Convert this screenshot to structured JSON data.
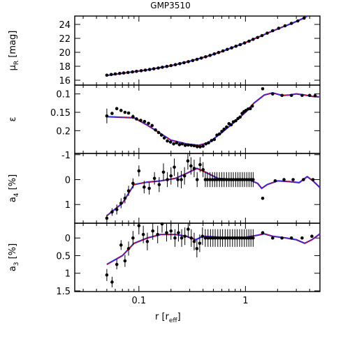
{
  "title": "GMP3510",
  "xlabel": "r [r",
  "xlabel_sub": "eff",
  "xlabel_close": "]",
  "colors": {
    "data": "#000000",
    "model_red": "#e00000",
    "model_blue": "#2a2aff"
  },
  "chart_data": [
    {
      "type": "scatter",
      "ylabel": "μ",
      "ylabel_sub": "R",
      "ylabel_unit": " [mag]",
      "xscale": "log",
      "xlim": [
        0.025,
        5.0
      ],
      "ylim": [
        25.2,
        15.3
      ],
      "xticks": [],
      "yticks": [
        16,
        18,
        20,
        22,
        24
      ],
      "points": [
        [
          0.05,
          16.72
        ],
        [
          0.055,
          16.82
        ],
        [
          0.06,
          16.9
        ],
        [
          0.066,
          16.97
        ],
        [
          0.072,
          17.04
        ],
        [
          0.079,
          17.11
        ],
        [
          0.087,
          17.19
        ],
        [
          0.095,
          17.27
        ],
        [
          0.105,
          17.36
        ],
        [
          0.115,
          17.45
        ],
        [
          0.126,
          17.54
        ],
        [
          0.138,
          17.64
        ],
        [
          0.152,
          17.75
        ],
        [
          0.166,
          17.86
        ],
        [
          0.183,
          17.98
        ],
        [
          0.2,
          18.1
        ],
        [
          0.22,
          18.23
        ],
        [
          0.242,
          18.37
        ],
        [
          0.265,
          18.51
        ],
        [
          0.291,
          18.66
        ],
        [
          0.32,
          18.82
        ],
        [
          0.351,
          18.99
        ],
        [
          0.385,
          19.17
        ],
        [
          0.423,
          19.36
        ],
        [
          0.465,
          19.56
        ],
        [
          0.51,
          19.77
        ],
        [
          0.56,
          19.98
        ],
        [
          0.615,
          20.2
        ],
        [
          0.675,
          20.42
        ],
        [
          0.741,
          20.64
        ],
        [
          0.814,
          20.87
        ],
        [
          0.893,
          21.1
        ],
        [
          0.981,
          21.34
        ],
        [
          1.08,
          21.6
        ],
        [
          1.18,
          21.86
        ],
        [
          1.3,
          22.12
        ],
        [
          1.43,
          22.4
        ],
        [
          1.6,
          22.75
        ],
        [
          1.8,
          23.1
        ],
        [
          2.05,
          23.45
        ],
        [
          2.35,
          23.8
        ],
        [
          2.7,
          24.15
        ],
        [
          3.1,
          24.5
        ],
        [
          3.55,
          24.9
        ]
      ],
      "model": [
        [
          0.05,
          16.68
        ],
        [
          0.08,
          17.12
        ],
        [
          0.12,
          17.48
        ],
        [
          0.2,
          18.08
        ],
        [
          0.3,
          18.72
        ],
        [
          0.45,
          19.48
        ],
        [
          0.6,
          20.12
        ],
        [
          0.8,
          20.84
        ],
        [
          1.0,
          21.4
        ],
        [
          1.3,
          22.14
        ],
        [
          1.7,
          22.9
        ],
        [
          2.2,
          23.6
        ],
        [
          2.8,
          24.22
        ],
        [
          3.4,
          24.8
        ],
        [
          3.8,
          25.25
        ]
      ]
    },
    {
      "type": "scatter",
      "ylabel": "ε",
      "xscale": "log",
      "xlim": [
        0.025,
        5.0
      ],
      "ylim": [
        0.076,
        0.262
      ],
      "xticks": [],
      "yticks": [
        0.1,
        0.15,
        0.2
      ],
      "ytick_labels": [
        "0.1",
        "0.15",
        "0.2"
      ],
      "points": [
        [
          0.05,
          0.16,
          0.02
        ],
        [
          0.056,
          0.153,
          0
        ],
        [
          0.062,
          0.14,
          0
        ],
        [
          0.068,
          0.145,
          0
        ],
        [
          0.074,
          0.15,
          0
        ],
        [
          0.08,
          0.152,
          0
        ],
        [
          0.088,
          0.162,
          0.006
        ],
        [
          0.095,
          0.168,
          0
        ],
        [
          0.104,
          0.172,
          0
        ],
        [
          0.113,
          0.175,
          0
        ],
        [
          0.123,
          0.18,
          0
        ],
        [
          0.133,
          0.186,
          0
        ],
        [
          0.143,
          0.198,
          0
        ],
        [
          0.153,
          0.205,
          0
        ],
        [
          0.163,
          0.212,
          0
        ],
        [
          0.173,
          0.22,
          0
        ],
        [
          0.185,
          0.228,
          0
        ],
        [
          0.198,
          0.231,
          0
        ],
        [
          0.212,
          0.236,
          0
        ],
        [
          0.226,
          0.233,
          0
        ],
        [
          0.24,
          0.238,
          0
        ],
        [
          0.255,
          0.236,
          0
        ],
        [
          0.272,
          0.24,
          0
        ],
        [
          0.29,
          0.239,
          0
        ],
        [
          0.31,
          0.24,
          0
        ],
        [
          0.33,
          0.241,
          0
        ],
        [
          0.352,
          0.243,
          0.006
        ],
        [
          0.375,
          0.244,
          0
        ],
        [
          0.4,
          0.242,
          0
        ],
        [
          0.425,
          0.236,
          0
        ],
        [
          0.45,
          0.233,
          0
        ],
        [
          0.48,
          0.227,
          0
        ],
        [
          0.51,
          0.224,
          0
        ],
        [
          0.54,
          0.212,
          0
        ],
        [
          0.57,
          0.209,
          0
        ],
        [
          0.6,
          0.202,
          0
        ],
        [
          0.63,
          0.196,
          0
        ],
        [
          0.665,
          0.19,
          0
        ],
        [
          0.7,
          0.181,
          0
        ],
        [
          0.735,
          0.184,
          0
        ],
        [
          0.77,
          0.176,
          0
        ],
        [
          0.81,
          0.173,
          0
        ],
        [
          0.85,
          0.167,
          0
        ],
        [
          0.89,
          0.163,
          0
        ],
        [
          0.93,
          0.153,
          0
        ],
        [
          0.97,
          0.148,
          0
        ],
        [
          1.01,
          0.145,
          0
        ],
        [
          1.06,
          0.141,
          0
        ],
        [
          1.11,
          0.14,
          0
        ],
        [
          1.16,
          0.133,
          0
        ],
        [
          1.45,
          0.086,
          0
        ],
        [
          1.8,
          0.1,
          0
        ],
        [
          2.2,
          0.104,
          0
        ],
        [
          2.7,
          0.104,
          0
        ],
        [
          3.4,
          0.104,
          0
        ],
        [
          4.0,
          0.104,
          0
        ],
        [
          4.5,
          0.105,
          0
        ]
      ],
      "model": [
        [
          0.05,
          0.162
        ],
        [
          0.09,
          0.165
        ],
        [
          0.12,
          0.185
        ],
        [
          0.16,
          0.208
        ],
        [
          0.2,
          0.226
        ],
        [
          0.28,
          0.236
        ],
        [
          0.36,
          0.24
        ],
        [
          0.45,
          0.233
        ],
        [
          0.6,
          0.205
        ],
        [
          0.8,
          0.175
        ],
        [
          1.0,
          0.15
        ],
        [
          1.2,
          0.125
        ],
        [
          1.5,
          0.103
        ],
        [
          1.8,
          0.097
        ],
        [
          2.2,
          0.104
        ],
        [
          2.6,
          0.103
        ],
        [
          3.0,
          0.1
        ],
        [
          3.6,
          0.103
        ],
        [
          4.3,
          0.107
        ],
        [
          4.9,
          0.108
        ]
      ]
    },
    {
      "type": "scatter",
      "ylabel": "a",
      "ylabel_sub": "4",
      "ylabel_unit": " [%]",
      "xscale": "log",
      "xlim": [
        0.025,
        5.0
      ],
      "ylim": [
        -1.05,
        1.75
      ],
      "xticks": [],
      "yticks": [
        -1,
        0,
        1
      ],
      "points": [
        [
          0.05,
          1.55,
          0.14
        ],
        [
          0.056,
          1.3,
          0.15
        ],
        [
          0.062,
          1.2,
          0.2
        ],
        [
          0.068,
          0.95,
          0.2
        ],
        [
          0.074,
          0.75,
          0.2
        ],
        [
          0.08,
          0.45,
          0.2
        ],
        [
          0.088,
          0.15,
          0.2
        ],
        [
          0.1,
          -0.35,
          0.22
        ],
        [
          0.112,
          0.3,
          0.25
        ],
        [
          0.125,
          0.35,
          0.25
        ],
        [
          0.14,
          -0.05,
          0.25
        ],
        [
          0.155,
          0.2,
          0.3
        ],
        [
          0.17,
          -0.3,
          0.35
        ],
        [
          0.185,
          0.0,
          0.3
        ],
        [
          0.2,
          -0.15,
          0.35
        ],
        [
          0.215,
          -0.5,
          0.35
        ],
        [
          0.232,
          0.0,
          0.3
        ],
        [
          0.25,
          0.0,
          0.35
        ],
        [
          0.268,
          -0.15,
          0.35
        ],
        [
          0.288,
          -0.75,
          0.35
        ],
        [
          0.308,
          -0.55,
          0.35
        ],
        [
          0.33,
          -0.45,
          0.35
        ],
        [
          0.352,
          0.0,
          0.3
        ],
        [
          0.375,
          -0.6,
          0.3
        ],
        [
          0.4,
          -0.4,
          0.3
        ],
        [
          0.42,
          0.0,
          0.3
        ],
        [
          0.44,
          0.0,
          0.3
        ],
        [
          0.465,
          0.0,
          0.3
        ],
        [
          0.49,
          0.0,
          0.3
        ],
        [
          0.515,
          0.0,
          0.3
        ],
        [
          0.54,
          0.0,
          0.3
        ],
        [
          0.57,
          0.0,
          0.3
        ],
        [
          0.6,
          0.0,
          0.3
        ],
        [
          0.63,
          0.0,
          0.3
        ],
        [
          0.665,
          0.0,
          0.3
        ],
        [
          0.7,
          0.0,
          0.3
        ],
        [
          0.735,
          0.0,
          0.3
        ],
        [
          0.77,
          0.0,
          0.3
        ],
        [
          0.81,
          0.0,
          0.3
        ],
        [
          0.85,
          0.0,
          0.3
        ],
        [
          0.89,
          0.0,
          0.3
        ],
        [
          0.935,
          0.0,
          0.3
        ],
        [
          0.98,
          0.0,
          0.3
        ],
        [
          1.03,
          0.0,
          0.3
        ],
        [
          1.08,
          0.0,
          0.3
        ],
        [
          1.13,
          0.0,
          0.3
        ],
        [
          1.18,
          0.0,
          0.3
        ],
        [
          1.45,
          0.75,
          0
        ],
        [
          1.9,
          0.05,
          0
        ],
        [
          2.3,
          0.0,
          0
        ],
        [
          2.8,
          0.0,
          0
        ],
        [
          3.5,
          0.0,
          0
        ],
        [
          4.3,
          0.0,
          0
        ]
      ],
      "model": [
        [
          0.05,
          1.45
        ],
        [
          0.07,
          0.95
        ],
        [
          0.09,
          0.2
        ],
        [
          0.12,
          0.1
        ],
        [
          0.16,
          0.05
        ],
        [
          0.22,
          -0.05
        ],
        [
          0.28,
          -0.25
        ],
        [
          0.35,
          -0.45
        ],
        [
          0.42,
          -0.3
        ],
        [
          0.55,
          -0.05
        ],
        [
          0.8,
          0.0
        ],
        [
          1.1,
          0.02
        ],
        [
          1.3,
          0.15
        ],
        [
          1.42,
          0.35
        ],
        [
          1.6,
          0.2
        ],
        [
          2.0,
          0.05
        ],
        [
          2.6,
          0.08
        ],
        [
          3.2,
          0.12
        ],
        [
          3.8,
          -0.12
        ],
        [
          4.3,
          0.05
        ],
        [
          5.0,
          0.32
        ]
      ]
    },
    {
      "type": "scatter",
      "ylabel": "a",
      "ylabel_sub": "3",
      "ylabel_unit": " [%]",
      "xscale": "log",
      "xlim": [
        0.025,
        5.0
      ],
      "ylim": [
        -0.42,
        1.52
      ],
      "xticks": [
        0.1,
        1
      ],
      "xtick_labels": [
        "0.1",
        "1"
      ],
      "yticks": [
        0,
        0.5,
        1,
        1.5
      ],
      "ytick_labels": [
        "0",
        "0.5",
        "1",
        "1.5"
      ],
      "points": [
        [
          0.05,
          1.05,
          0.17
        ],
        [
          0.056,
          1.25,
          0.15
        ],
        [
          0.062,
          0.75,
          0.14
        ],
        [
          0.068,
          0.2,
          0.14
        ],
        [
          0.074,
          0.65,
          0.17
        ],
        [
          0.08,
          0.3,
          0.2
        ],
        [
          0.088,
          0.0,
          0.2
        ],
        [
          0.1,
          -0.35,
          0.25
        ],
        [
          0.11,
          -0.1,
          0.25
        ],
        [
          0.12,
          0.1,
          0.25
        ],
        [
          0.135,
          -0.2,
          0.25
        ],
        [
          0.15,
          -0.1,
          0.25
        ],
        [
          0.165,
          -0.4,
          0.25
        ],
        [
          0.182,
          -0.15,
          0.25
        ],
        [
          0.2,
          -0.2,
          0.25
        ],
        [
          0.218,
          0.0,
          0.25
        ],
        [
          0.235,
          -0.15,
          0.25
        ],
        [
          0.252,
          0.0,
          0.25
        ],
        [
          0.27,
          -0.05,
          0.25
        ],
        [
          0.29,
          -0.25,
          0.25
        ],
        [
          0.31,
          0.0,
          0.25
        ],
        [
          0.33,
          0.1,
          0.25
        ],
        [
          0.35,
          0.3,
          0.25
        ],
        [
          0.372,
          0.15,
          0.25
        ],
        [
          0.395,
          -0.05,
          0.25
        ],
        [
          0.42,
          0.0,
          0.25
        ],
        [
          0.445,
          0.0,
          0.25
        ],
        [
          0.47,
          0.0,
          0.25
        ],
        [
          0.495,
          0.0,
          0.25
        ],
        [
          0.52,
          0.0,
          0.25
        ],
        [
          0.55,
          0.0,
          0.25
        ],
        [
          0.58,
          0.0,
          0.25
        ],
        [
          0.61,
          0.0,
          0.25
        ],
        [
          0.645,
          0.0,
          0.25
        ],
        [
          0.68,
          0.0,
          0.25
        ],
        [
          0.715,
          0.0,
          0.25
        ],
        [
          0.755,
          0.0,
          0.25
        ],
        [
          0.795,
          0.0,
          0.25
        ],
        [
          0.835,
          0.0,
          0.25
        ],
        [
          0.88,
          0.0,
          0.25
        ],
        [
          0.925,
          0.0,
          0.25
        ],
        [
          0.975,
          0.0,
          0.25
        ],
        [
          1.025,
          0.0,
          0.25
        ],
        [
          1.075,
          0.0,
          0.25
        ],
        [
          1.125,
          0.0,
          0.25
        ],
        [
          1.18,
          0.0,
          0.25
        ],
        [
          1.45,
          -0.15,
          0
        ],
        [
          1.8,
          0.0,
          0
        ],
        [
          2.2,
          0.0,
          0
        ],
        [
          2.7,
          0.0,
          0
        ],
        [
          3.4,
          0.0,
          0
        ],
        [
          4.2,
          -0.05,
          0
        ]
      ],
      "model": [
        [
          0.05,
          0.75
        ],
        [
          0.07,
          0.5
        ],
        [
          0.09,
          0.15
        ],
        [
          0.12,
          0.0
        ],
        [
          0.16,
          -0.1
        ],
        [
          0.22,
          -0.1
        ],
        [
          0.28,
          -0.05
        ],
        [
          0.34,
          0.05
        ],
        [
          0.4,
          -0.05
        ],
        [
          0.6,
          -0.02
        ],
        [
          1.0,
          -0.02
        ],
        [
          1.3,
          -0.08
        ],
        [
          1.5,
          -0.12
        ],
        [
          1.8,
          -0.05
        ],
        [
          2.4,
          0.0
        ],
        [
          3.0,
          0.05
        ],
        [
          3.6,
          0.15
        ],
        [
          4.2,
          0.05
        ],
        [
          5.0,
          -0.12
        ]
      ]
    }
  ]
}
